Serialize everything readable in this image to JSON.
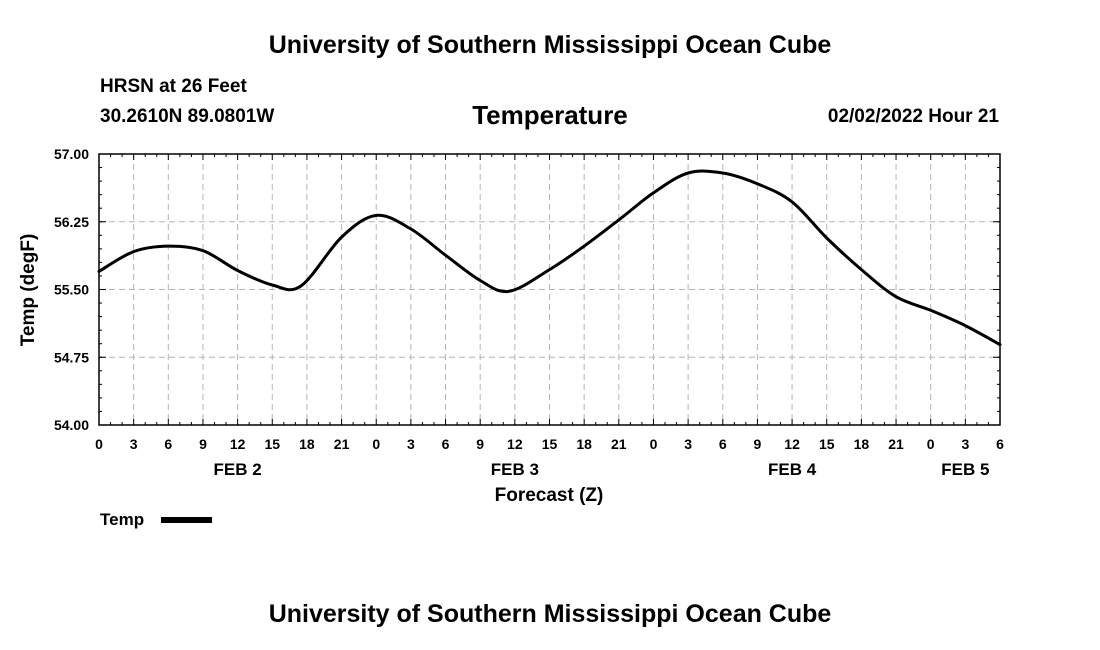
{
  "header": {
    "title": "University of Southern Mississippi Ocean Cube",
    "station": "HRSN at 26 Feet",
    "coords": "30.2610N  89.0801W",
    "variable": "Temperature",
    "datetime": "02/02/2022 Hour 21"
  },
  "footer": {
    "title": "University of Southern Mississippi Ocean Cube"
  },
  "colors": {
    "line": "#000000",
    "grid": "#b4b4b4",
    "background": "#ffffff"
  },
  "chart_data": {
    "type": "line",
    "title": "Temperature",
    "xlabel": "Forecast (Z)",
    "ylabel": "Temp (degF)",
    "ylim": [
      54.0,
      57.0
    ],
    "xlim": [
      0,
      78
    ],
    "y_ticks": [
      "54.00",
      "54.75",
      "55.50",
      "56.25",
      "57.00"
    ],
    "y_tick_values": [
      54.0,
      54.75,
      55.5,
      56.25,
      57.0
    ],
    "x_tick_labels": [
      "0",
      "3",
      "6",
      "9",
      "12",
      "15",
      "18",
      "21",
      "0",
      "3",
      "6",
      "9",
      "12",
      "15",
      "18",
      "21",
      "0",
      "3",
      "6",
      "9",
      "12",
      "15",
      "18",
      "21",
      "0",
      "3",
      "6"
    ],
    "day_labels": [
      {
        "label": "FEB 2",
        "hour": 12
      },
      {
        "label": "FEB 3",
        "hour": 36
      },
      {
        "label": "FEB 4",
        "hour": 60
      },
      {
        "label": "FEB 5",
        "hour": 75
      }
    ],
    "grid": true,
    "legend": {
      "position": "bottom-left",
      "label": "Temp"
    },
    "series": [
      {
        "name": "Temp",
        "x": [
          0,
          3,
          6,
          9,
          12,
          15,
          17.5,
          21,
          24,
          27,
          30,
          33,
          35.5,
          39,
          42,
          45,
          48,
          51,
          54,
          57,
          60,
          63,
          66,
          69,
          72,
          75,
          78
        ],
        "values": [
          55.7,
          55.92,
          55.98,
          55.93,
          55.71,
          55.55,
          55.54,
          56.08,
          56.32,
          56.17,
          55.88,
          55.6,
          55.48,
          55.72,
          55.98,
          56.27,
          56.57,
          56.79,
          56.79,
          56.67,
          56.47,
          56.07,
          55.72,
          55.42,
          55.27,
          55.1,
          54.89
        ]
      }
    ]
  }
}
